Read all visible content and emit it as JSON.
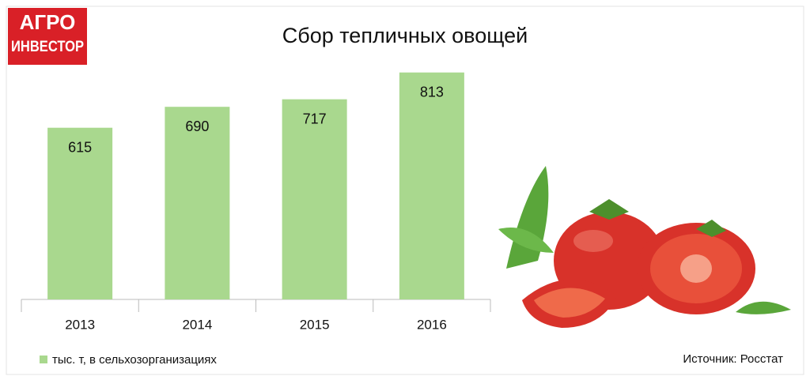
{
  "logo": {
    "line1": "АГРО",
    "line2": "ИНВЕСТОР"
  },
  "source": "Источник: Росстат",
  "chart_data": {
    "type": "bar",
    "title": "Сбор тепличных овощей",
    "categories": [
      "2013",
      "2014",
      "2015",
      "2016"
    ],
    "series": [
      {
        "name": "тыс. т, в сельхозорганизациях",
        "color": "#a9d88e",
        "values": [
          615,
          690,
          717,
          813
        ]
      }
    ],
    "ylim": [
      0,
      900
    ]
  }
}
